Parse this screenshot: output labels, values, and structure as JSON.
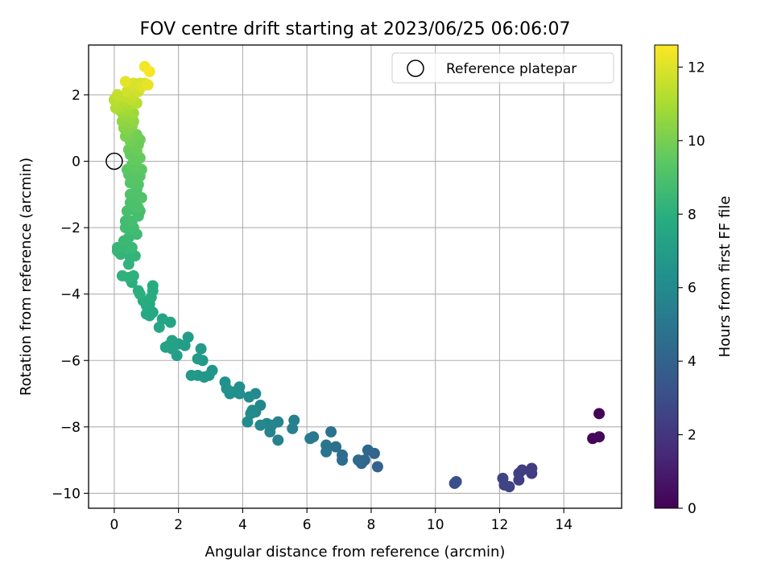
{
  "chart_data": {
    "type": "scatter",
    "title": "FOV centre drift starting at 2023/06/25 06:06:07",
    "xlabel": "Angular distance from reference (arcmin)",
    "ylabel": "Rotation from reference (arcmin)",
    "xlim": [
      -0.8,
      15.8
    ],
    "ylim": [
      -10.45,
      3.5
    ],
    "xticks": [
      0,
      2,
      4,
      6,
      8,
      10,
      12,
      14
    ],
    "yticks": [
      -10,
      -8,
      -6,
      -4,
      -2,
      0,
      2
    ],
    "grid": true,
    "colormap": "viridis",
    "colorbar": {
      "label": "Hours from first FF file",
      "range": [
        0,
        12.6
      ],
      "ticks": [
        0,
        2,
        4,
        6,
        8,
        10,
        12
      ]
    },
    "legend": {
      "position": "top-right",
      "entries": [
        "Reference platepar"
      ]
    },
    "reference_marker": {
      "x": 0,
      "y": 0,
      "label": "Reference platepar"
    },
    "points": [
      {
        "x": 15.1,
        "y": -7.6,
        "c": 0.1
      },
      {
        "x": 14.9,
        "y": -8.35,
        "c": 0.2
      },
      {
        "x": 15.1,
        "y": -8.3,
        "c": 0.3
      },
      {
        "x": 13.0,
        "y": -9.25,
        "c": 2.2
      },
      {
        "x": 13.0,
        "y": -9.4,
        "c": 2.3
      },
      {
        "x": 12.7,
        "y": -9.3,
        "c": 2.3
      },
      {
        "x": 12.6,
        "y": -9.4,
        "c": 2.4
      },
      {
        "x": 12.6,
        "y": -9.6,
        "c": 2.4
      },
      {
        "x": 12.3,
        "y": -9.8,
        "c": 2.5
      },
      {
        "x": 12.1,
        "y": -9.55,
        "c": 2.6
      },
      {
        "x": 12.15,
        "y": -9.75,
        "c": 2.6
      },
      {
        "x": 10.6,
        "y": -9.7,
        "c": 3.0
      },
      {
        "x": 10.65,
        "y": -9.65,
        "c": 3.1
      },
      {
        "x": 8.2,
        "y": -9.2,
        "c": 4.0
      },
      {
        "x": 8.1,
        "y": -8.8,
        "c": 4.1
      },
      {
        "x": 7.9,
        "y": -8.7,
        "c": 4.2
      },
      {
        "x": 7.8,
        "y": -9.0,
        "c": 4.3
      },
      {
        "x": 7.7,
        "y": -9.1,
        "c": 4.3
      },
      {
        "x": 7.6,
        "y": -9.0,
        "c": 4.4
      },
      {
        "x": 7.1,
        "y": -8.85,
        "c": 4.6
      },
      {
        "x": 7.1,
        "y": -9.0,
        "c": 4.6
      },
      {
        "x": 6.9,
        "y": -8.6,
        "c": 4.7
      },
      {
        "x": 6.75,
        "y": -8.15,
        "c": 4.8
      },
      {
        "x": 6.6,
        "y": -8.55,
        "c": 4.9
      },
      {
        "x": 6.6,
        "y": -8.75,
        "c": 4.9
      },
      {
        "x": 6.2,
        "y": -8.3,
        "c": 5.1
      },
      {
        "x": 6.1,
        "y": -8.35,
        "c": 5.2
      },
      {
        "x": 5.6,
        "y": -7.8,
        "c": 5.5
      },
      {
        "x": 5.55,
        "y": -8.05,
        "c": 5.5
      },
      {
        "x": 5.1,
        "y": -8.4,
        "c": 5.6
      },
      {
        "x": 5.1,
        "y": -7.85,
        "c": 5.6
      },
      {
        "x": 4.9,
        "y": -7.95,
        "c": 5.7
      },
      {
        "x": 4.85,
        "y": -8.15,
        "c": 5.7
      },
      {
        "x": 4.75,
        "y": -7.9,
        "c": 5.8
      },
      {
        "x": 4.55,
        "y": -7.35,
        "c": 5.8
      },
      {
        "x": 4.55,
        "y": -7.95,
        "c": 5.9
      },
      {
        "x": 4.4,
        "y": -7.55,
        "c": 5.9
      },
      {
        "x": 4.3,
        "y": -7.5,
        "c": 6.0
      },
      {
        "x": 4.25,
        "y": -7.6,
        "c": 6.0
      },
      {
        "x": 4.4,
        "y": -7.0,
        "c": 6.0
      },
      {
        "x": 4.2,
        "y": -7.1,
        "c": 6.1
      },
      {
        "x": 4.15,
        "y": -7.85,
        "c": 6.1
      },
      {
        "x": 3.9,
        "y": -7.0,
        "c": 6.2
      },
      {
        "x": 3.9,
        "y": -6.8,
        "c": 6.2
      },
      {
        "x": 3.7,
        "y": -6.95,
        "c": 6.3
      },
      {
        "x": 3.6,
        "y": -7.0,
        "c": 6.3
      },
      {
        "x": 3.5,
        "y": -6.85,
        "c": 6.4
      },
      {
        "x": 3.45,
        "y": -6.65,
        "c": 6.4
      },
      {
        "x": 3.05,
        "y": -6.3,
        "c": 6.6
      },
      {
        "x": 2.95,
        "y": -6.45,
        "c": 6.6
      },
      {
        "x": 2.8,
        "y": -6.5,
        "c": 6.7
      },
      {
        "x": 2.6,
        "y": -6.45,
        "c": 6.7
      },
      {
        "x": 2.4,
        "y": -6.45,
        "c": 6.8
      },
      {
        "x": 2.75,
        "y": -6.0,
        "c": 6.8
      },
      {
        "x": 2.6,
        "y": -5.95,
        "c": 6.9
      },
      {
        "x": 2.7,
        "y": -5.65,
        "c": 6.9
      },
      {
        "x": 2.3,
        "y": -5.3,
        "c": 7.0
      },
      {
        "x": 2.2,
        "y": -5.55,
        "c": 7.0
      },
      {
        "x": 2.0,
        "y": -5.5,
        "c": 7.1
      },
      {
        "x": 1.95,
        "y": -5.85,
        "c": 7.1
      },
      {
        "x": 1.8,
        "y": -5.65,
        "c": 7.2
      },
      {
        "x": 1.7,
        "y": -5.55,
        "c": 7.2
      },
      {
        "x": 1.8,
        "y": -5.4,
        "c": 7.3
      },
      {
        "x": 1.6,
        "y": -5.6,
        "c": 7.3
      },
      {
        "x": 1.75,
        "y": -4.85,
        "c": 7.4
      },
      {
        "x": 1.5,
        "y": -4.75,
        "c": 7.4
      },
      {
        "x": 1.4,
        "y": -5.0,
        "c": 7.5
      },
      {
        "x": 1.2,
        "y": -4.55,
        "c": 7.5
      },
      {
        "x": 1.1,
        "y": -4.65,
        "c": 7.6
      },
      {
        "x": 1.0,
        "y": -4.6,
        "c": 7.6
      },
      {
        "x": 1.1,
        "y": -4.3,
        "c": 7.7
      },
      {
        "x": 1.0,
        "y": -4.35,
        "c": 7.7
      },
      {
        "x": 0.9,
        "y": -4.2,
        "c": 7.8
      },
      {
        "x": 1.2,
        "y": -3.9,
        "c": 7.8
      },
      {
        "x": 1.2,
        "y": -3.75,
        "c": 7.9
      },
      {
        "x": 1.15,
        "y": -4.1,
        "c": 7.9
      },
      {
        "x": 0.8,
        "y": -4.0,
        "c": 8.0
      },
      {
        "x": 0.75,
        "y": -3.9,
        "c": 8.0
      },
      {
        "x": 0.55,
        "y": -3.65,
        "c": 8.0
      },
      {
        "x": 0.45,
        "y": -3.5,
        "c": 8.1
      },
      {
        "x": 0.6,
        "y": -3.45,
        "c": 8.1
      },
      {
        "x": 0.25,
        "y": -3.45,
        "c": 8.1
      },
      {
        "x": 0.45,
        "y": -3.1,
        "c": 8.2
      },
      {
        "x": 0.5,
        "y": -2.9,
        "c": 8.2
      },
      {
        "x": 0.65,
        "y": -2.85,
        "c": 8.3
      },
      {
        "x": 0.1,
        "y": -2.7,
        "c": 8.3
      },
      {
        "x": 0.2,
        "y": -2.8,
        "c": 8.3
      },
      {
        "x": 0.1,
        "y": -2.6,
        "c": 8.4
      },
      {
        "x": 0.3,
        "y": -2.55,
        "c": 8.4
      },
      {
        "x": 0.4,
        "y": -2.6,
        "c": 8.4
      },
      {
        "x": 0.55,
        "y": -2.6,
        "c": 8.5
      },
      {
        "x": 0.3,
        "y": -2.4,
        "c": 8.5
      },
      {
        "x": 0.45,
        "y": -2.3,
        "c": 8.5
      },
      {
        "x": 0.5,
        "y": -2.1,
        "c": 8.6
      },
      {
        "x": 0.7,
        "y": -2.2,
        "c": 8.6
      },
      {
        "x": 0.6,
        "y": -2.0,
        "c": 8.7
      },
      {
        "x": 0.35,
        "y": -2.0,
        "c": 8.7
      },
      {
        "x": 0.35,
        "y": -1.8,
        "c": 8.7
      },
      {
        "x": 0.55,
        "y": -1.8,
        "c": 8.8
      },
      {
        "x": 0.75,
        "y": -1.65,
        "c": 8.8
      },
      {
        "x": 0.8,
        "y": -1.5,
        "c": 8.8
      },
      {
        "x": 0.4,
        "y": -1.5,
        "c": 8.9
      },
      {
        "x": 0.55,
        "y": -1.45,
        "c": 8.9
      },
      {
        "x": 0.75,
        "y": -1.4,
        "c": 9.0
      },
      {
        "x": 0.5,
        "y": -1.25,
        "c": 9.0
      },
      {
        "x": 0.65,
        "y": -1.15,
        "c": 9.0
      },
      {
        "x": 0.85,
        "y": -1.1,
        "c": 9.1
      },
      {
        "x": 0.5,
        "y": -1.0,
        "c": 9.1
      },
      {
        "x": 0.7,
        "y": -0.85,
        "c": 9.1
      },
      {
        "x": 0.75,
        "y": -0.7,
        "c": 9.2
      },
      {
        "x": 0.5,
        "y": -0.65,
        "c": 9.2
      },
      {
        "x": 0.6,
        "y": -0.55,
        "c": 9.3
      },
      {
        "x": 0.8,
        "y": -0.45,
        "c": 9.3
      },
      {
        "x": 0.45,
        "y": -0.4,
        "c": 9.3
      },
      {
        "x": 0.6,
        "y": -0.3,
        "c": 9.4
      },
      {
        "x": 0.85,
        "y": -0.25,
        "c": 9.4
      },
      {
        "x": 0.4,
        "y": -0.25,
        "c": 9.4
      },
      {
        "x": 0.7,
        "y": -0.15,
        "c": 9.5
      },
      {
        "x": 0.55,
        "y": -0.1,
        "c": 9.5
      },
      {
        "x": 0.65,
        "y": 0.05,
        "c": 9.6
      },
      {
        "x": 0.8,
        "y": 0.1,
        "c": 9.6
      },
      {
        "x": 0.5,
        "y": 0.2,
        "c": 9.6
      },
      {
        "x": 0.7,
        "y": 0.3,
        "c": 9.7
      },
      {
        "x": 0.45,
        "y": 0.35,
        "c": 9.7
      },
      {
        "x": 0.75,
        "y": 0.5,
        "c": 9.8
      },
      {
        "x": 0.6,
        "y": 0.45,
        "c": 9.8
      },
      {
        "x": 0.8,
        "y": 0.65,
        "c": 9.8
      },
      {
        "x": 0.5,
        "y": 0.6,
        "c": 9.9
      },
      {
        "x": 0.7,
        "y": 0.8,
        "c": 9.9
      },
      {
        "x": 0.5,
        "y": 0.8,
        "c": 10.0
      },
      {
        "x": 0.35,
        "y": 0.75,
        "c": 10.1
      },
      {
        "x": 0.4,
        "y": 0.95,
        "c": 10.2
      },
      {
        "x": 0.3,
        "y": 1.0,
        "c": 10.3
      },
      {
        "x": 0.55,
        "y": 1.05,
        "c": 10.3
      },
      {
        "x": 0.45,
        "y": 1.15,
        "c": 10.4
      },
      {
        "x": 0.25,
        "y": 1.2,
        "c": 10.5
      },
      {
        "x": 0.6,
        "y": 1.2,
        "c": 10.5
      },
      {
        "x": 0.35,
        "y": 1.35,
        "c": 10.6
      },
      {
        "x": 0.5,
        "y": 1.3,
        "c": 10.6
      },
      {
        "x": 0.25,
        "y": 1.45,
        "c": 10.7
      },
      {
        "x": 0.6,
        "y": 1.45,
        "c": 10.8
      },
      {
        "x": 0.15,
        "y": 1.55,
        "c": 10.9
      },
      {
        "x": 0.4,
        "y": 1.55,
        "c": 10.9
      },
      {
        "x": 0.25,
        "y": 1.65,
        "c": 11.0
      },
      {
        "x": 0.05,
        "y": 1.6,
        "c": 11.1
      },
      {
        "x": 0.5,
        "y": 1.7,
        "c": 11.1
      },
      {
        "x": 0.1,
        "y": 1.75,
        "c": 11.2
      },
      {
        "x": 0.3,
        "y": 1.8,
        "c": 11.2
      },
      {
        "x": 0.0,
        "y": 1.85,
        "c": 11.3
      },
      {
        "x": 0.7,
        "y": 1.75,
        "c": 11.3
      },
      {
        "x": 0.55,
        "y": 1.85,
        "c": 11.4
      },
      {
        "x": 0.15,
        "y": 1.95,
        "c": 11.4
      },
      {
        "x": 0.35,
        "y": 1.95,
        "c": 11.5
      },
      {
        "x": 0.1,
        "y": 2.0,
        "c": 11.5
      },
      {
        "x": 0.6,
        "y": 2.0,
        "c": 11.6
      },
      {
        "x": 0.4,
        "y": 2.1,
        "c": 11.7
      },
      {
        "x": 0.75,
        "y": 2.1,
        "c": 11.7
      },
      {
        "x": 0.55,
        "y": 2.2,
        "c": 11.8
      },
      {
        "x": 0.8,
        "y": 2.35,
        "c": 11.9
      },
      {
        "x": 0.6,
        "y": 2.35,
        "c": 11.9
      },
      {
        "x": 0.85,
        "y": 2.25,
        "c": 12.0
      },
      {
        "x": 0.95,
        "y": 2.35,
        "c": 12.0
      },
      {
        "x": 0.35,
        "y": 2.4,
        "c": 12.1
      },
      {
        "x": 1.05,
        "y": 2.3,
        "c": 12.2
      },
      {
        "x": 0.95,
        "y": 2.85,
        "c": 12.4
      },
      {
        "x": 1.1,
        "y": 2.7,
        "c": 12.5
      }
    ]
  }
}
